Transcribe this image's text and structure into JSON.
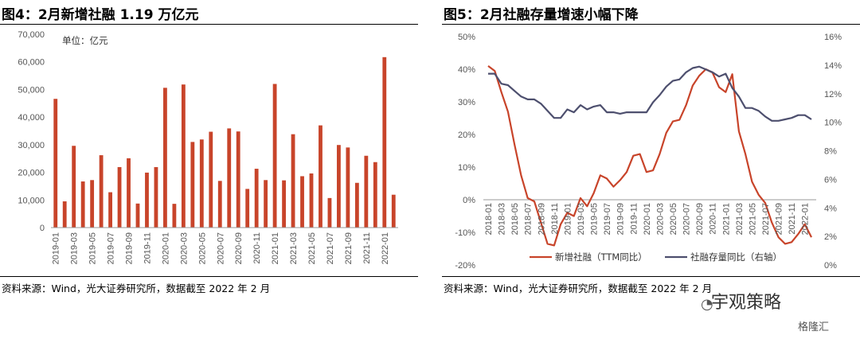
{
  "chart_data": [
    {
      "type": "bar",
      "title": "图4：2月新增社融 1.19 万亿元",
      "unit_label": "单位：亿元",
      "source": "资料来源：Wind，光大证券研究所，数据截至 2022 年 2 月",
      "ylim": [
        0,
        70000
      ],
      "yticks": [
        "0",
        "10,000",
        "20,000",
        "30,000",
        "40,000",
        "50,000",
        "60,000",
        "70,000"
      ],
      "color": "#c8442a",
      "categories": [
        "2019-01",
        "2019-02",
        "2019-03",
        "2019-04",
        "2019-05",
        "2019-06",
        "2019-07",
        "2019-08",
        "2019-09",
        "2019-10",
        "2019-11",
        "2019-12",
        "2020-01",
        "2020-02",
        "2020-03",
        "2020-04",
        "2020-05",
        "2020-06",
        "2020-07",
        "2020-08",
        "2020-09",
        "2020-10",
        "2020-11",
        "2020-12",
        "2021-01",
        "2021-02",
        "2021-03",
        "2021-04",
        "2021-05",
        "2021-06",
        "2021-07",
        "2021-08",
        "2021-09",
        "2021-10",
        "2021-11",
        "2021-12",
        "2022-01",
        "2022-02"
      ],
      "x_tick_labels": [
        "2019-01",
        "2019-03",
        "2019-05",
        "2019-07",
        "2019-09",
        "2019-11",
        "2020-01",
        "2020-03",
        "2020-05",
        "2020-07",
        "2020-09",
        "2020-11",
        "2021-01",
        "2021-03",
        "2021-05",
        "2021-07",
        "2021-09",
        "2021-11",
        "2022-01"
      ],
      "values": [
        46600,
        9500,
        29600,
        16700,
        17200,
        26200,
        12800,
        21900,
        25100,
        8700,
        19900,
        21900,
        50600,
        8600,
        51800,
        31000,
        31900,
        34700,
        16900,
        35900,
        34800,
        14000,
        21300,
        17200,
        52000,
        17100,
        33800,
        18600,
        19600,
        37000,
        10700,
        29900,
        29000,
        16200,
        26000,
        23700,
        61700,
        11900
      ]
    },
    {
      "type": "line",
      "title": "图5：2月社融存量增速小幅下降",
      "source": "资料来源：Wind，光大证券研究所，数据截至 2022 年 2 月",
      "ylim_left": [
        -20,
        50
      ],
      "ylim_right": [
        0,
        16
      ],
      "yticks_left": [
        "-20%",
        "-10%",
        "0%",
        "10%",
        "20%",
        "30%",
        "40%",
        "50%"
      ],
      "yticks_right": [
        "0%",
        "2%",
        "4%",
        "6%",
        "8%",
        "10%",
        "12%",
        "14%",
        "16%"
      ],
      "x_tick_labels": [
        "2018-01",
        "2018-03",
        "2018-05",
        "2018-07",
        "2018-09",
        "2018-11",
        "2019-01",
        "2019-03",
        "2019-05",
        "2019-07",
        "2019-09",
        "2019-11",
        "2020-01",
        "2020-03",
        "2020-05",
        "2020-07",
        "2020-09",
        "2020-11",
        "2021-01",
        "2021-03",
        "2021-05",
        "2021-07",
        "2021-09",
        "2021-11",
        "2022-01"
      ],
      "legend_position": "bottom",
      "x": [
        "2018-01",
        "2018-02",
        "2018-03",
        "2018-04",
        "2018-05",
        "2018-06",
        "2018-07",
        "2018-08",
        "2018-09",
        "2018-10",
        "2018-11",
        "2018-12",
        "2019-01",
        "2019-02",
        "2019-03",
        "2019-04",
        "2019-05",
        "2019-06",
        "2019-07",
        "2019-08",
        "2019-09",
        "2019-10",
        "2019-11",
        "2019-12",
        "2020-01",
        "2020-02",
        "2020-03",
        "2020-04",
        "2020-05",
        "2020-06",
        "2020-07",
        "2020-08",
        "2020-09",
        "2020-10",
        "2020-11",
        "2020-12",
        "2021-01",
        "2021-02",
        "2021-03",
        "2021-04",
        "2021-05",
        "2021-06",
        "2021-07",
        "2021-08",
        "2021-09",
        "2021-10",
        "2021-11",
        "2021-12",
        "2022-01",
        "2022-02"
      ],
      "series": [
        {
          "name": "新增社融（TTM同比）",
          "axis": "left",
          "color": "#c8442a",
          "values": [
            41.0,
            39.5,
            33.0,
            27.0,
            17.0,
            7.5,
            0.5,
            -0.5,
            -7.0,
            -13.5,
            -14.0,
            -7.5,
            -4.0,
            -5.0,
            0.5,
            -2.0,
            2.0,
            7.5,
            6.5,
            4.0,
            6.0,
            8.5,
            13.5,
            14.0,
            8.5,
            9.0,
            14.0,
            20.5,
            24.0,
            24.5,
            29.0,
            35.0,
            38.0,
            40.0,
            39.0,
            34.5,
            33.0,
            38.5,
            21.0,
            14.0,
            5.5,
            1.5,
            -1.0,
            -7.0,
            -11.5,
            -13.5,
            -13.0,
            -10.5,
            -7.5,
            -11.5
          ]
        },
        {
          "name": "社融存量同比（右轴）",
          "axis": "right",
          "color": "#4d4f6e",
          "values": [
            13.4,
            13.4,
            12.7,
            12.6,
            12.2,
            11.8,
            11.6,
            11.6,
            11.3,
            10.8,
            10.3,
            10.3,
            10.9,
            10.7,
            11.2,
            10.9,
            11.1,
            11.2,
            10.7,
            10.7,
            10.6,
            10.7,
            10.7,
            10.7,
            10.7,
            11.4,
            11.9,
            12.5,
            12.9,
            13.0,
            13.5,
            13.8,
            13.9,
            13.7,
            13.5,
            13.2,
            13.4,
            12.4,
            11.8,
            11.0,
            11.0,
            10.8,
            10.4,
            10.1,
            10.1,
            10.2,
            10.3,
            10.5,
            10.5,
            10.2
          ]
        }
      ]
    }
  ],
  "watermark": {
    "text": "宇观策略",
    "icon": "wechat-icon",
    "footer": "格隆汇"
  }
}
